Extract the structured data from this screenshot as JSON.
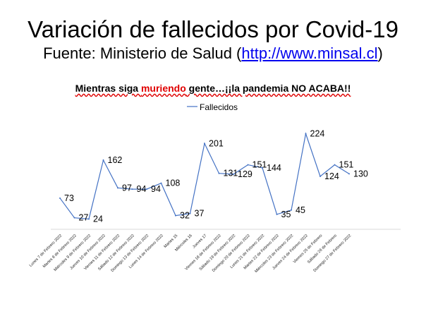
{
  "title": "Variación de fallecidos por Covid-19",
  "subtitle": {
    "prefix": "Fuente: Ministerio de Salud (",
    "link": "http://www.minsal.cl",
    "suffix": ")"
  },
  "banner": {
    "part1": "Mientras siga ",
    "part2": "muriendo",
    "part3": " gente…¡¡la pandemia NO ACABA!!",
    "highlight_color": "#e00000"
  },
  "chart_data": {
    "type": "line",
    "categories": [
      "Lunes 7 de Febrero 2022",
      "Martes 8 de Febrero 2022",
      "Miércoles 9 de Febrero 2022",
      "Jueves 10 de Febrero 2022",
      "Viernes 11 de Febrero 2022",
      "Sábado 12 de Febrero 2022",
      "Domingo 13 de Febrero 2022",
      "Lunes 14 de Febrero 2022",
      "Martes 15",
      "Miércoles 16",
      "Jueves 17",
      "Viernes 18 de Febrero 2022",
      "Sábado 19 de Febrero 2022",
      "Domingo 20 de Febrero 2022",
      "Lunes 21 de Febrero 2022",
      "Martes 22 de Febrero 2022",
      "Miércoles 23 de Febrero 2022",
      "Jueves 24 de Febrero 2022",
      "Viernes 25 de Febrero",
      "Sábado 26 de Febrero",
      "Domingo 27 de Febrero 2022"
    ],
    "series": [
      {
        "name": "Fallecidos",
        "color": "#4472c4",
        "values": [
          73,
          27,
          24,
          162,
          97,
          94,
          94,
          108,
          32,
          37,
          201,
          131,
          129,
          151,
          144,
          35,
          45,
          224,
          124,
          151,
          130
        ]
      }
    ],
    "ylim": [
      0,
      230
    ],
    "grid": false,
    "legend": "top-center"
  }
}
